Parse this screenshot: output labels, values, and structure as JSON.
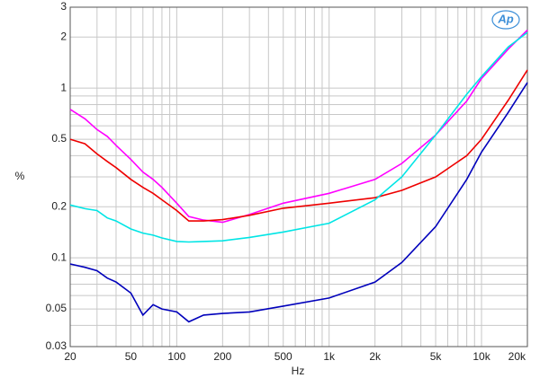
{
  "chart_data": {
    "type": "line",
    "logo": "Ap",
    "xlabel": "Hz",
    "ylabel": "%",
    "xscale": "log",
    "yscale": "log",
    "grid": true,
    "x": [
      20,
      25,
      30,
      35,
      40,
      50,
      60,
      70,
      80,
      100,
      120,
      150,
      200,
      300,
      500,
      1000,
      2000,
      3000,
      5000,
      8000,
      10000,
      15000,
      20000
    ],
    "series": [
      {
        "color": "#ff00ff",
        "values": [
          0.75,
          0.66,
          0.57,
          0.52,
          0.46,
          0.38,
          0.32,
          0.29,
          0.26,
          0.21,
          0.175,
          0.167,
          0.162,
          0.18,
          0.21,
          0.24,
          0.29,
          0.36,
          0.53,
          0.84,
          1.14,
          1.7,
          2.2
        ]
      },
      {
        "color": "#ee0000",
        "values": [
          0.5,
          0.47,
          0.41,
          0.37,
          0.34,
          0.29,
          0.26,
          0.24,
          0.22,
          0.19,
          0.165,
          0.165,
          0.168,
          0.178,
          0.196,
          0.21,
          0.226,
          0.25,
          0.3,
          0.4,
          0.5,
          0.85,
          1.28
        ]
      },
      {
        "color": "#00e5e5",
        "values": [
          0.205,
          0.195,
          0.19,
          0.172,
          0.165,
          0.148,
          0.14,
          0.136,
          0.131,
          0.125,
          0.124,
          0.125,
          0.126,
          0.132,
          0.142,
          0.16,
          0.22,
          0.3,
          0.53,
          0.92,
          1.17,
          1.75,
          2.13
        ]
      },
      {
        "color": "#0000bb",
        "values": [
          0.092,
          0.088,
          0.084,
          0.076,
          0.072,
          0.062,
          0.046,
          0.053,
          0.05,
          0.048,
          0.042,
          0.046,
          0.047,
          0.048,
          0.052,
          0.058,
          0.072,
          0.094,
          0.153,
          0.29,
          0.42,
          0.72,
          1.08
        ]
      }
    ],
    "xlim": [
      20,
      20000
    ],
    "xticks": [
      20,
      50,
      100,
      200,
      500,
      {
        "value": 1000,
        "label": "1k"
      },
      {
        "value": 2000,
        "label": "2k"
      },
      {
        "value": 5000,
        "label": "5k"
      },
      {
        "value": 10000,
        "label": "10k"
      },
      {
        "value": 20000,
        "label": "20k"
      }
    ],
    "xminorticks": [
      30,
      40,
      60,
      70,
      80,
      90,
      300,
      400,
      600,
      700,
      800,
      900,
      3000,
      4000,
      6000,
      7000,
      8000,
      9000
    ],
    "ylim": [
      0.03,
      3
    ],
    "yticks": [
      0.03,
      0.05,
      0.1,
      0.2,
      0.5,
      1,
      2,
      3
    ],
    "yminorticks": [
      0.04,
      0.06,
      0.07,
      0.08,
      0.09,
      0.3,
      0.4,
      0.6,
      0.7,
      0.8,
      0.9
    ]
  }
}
